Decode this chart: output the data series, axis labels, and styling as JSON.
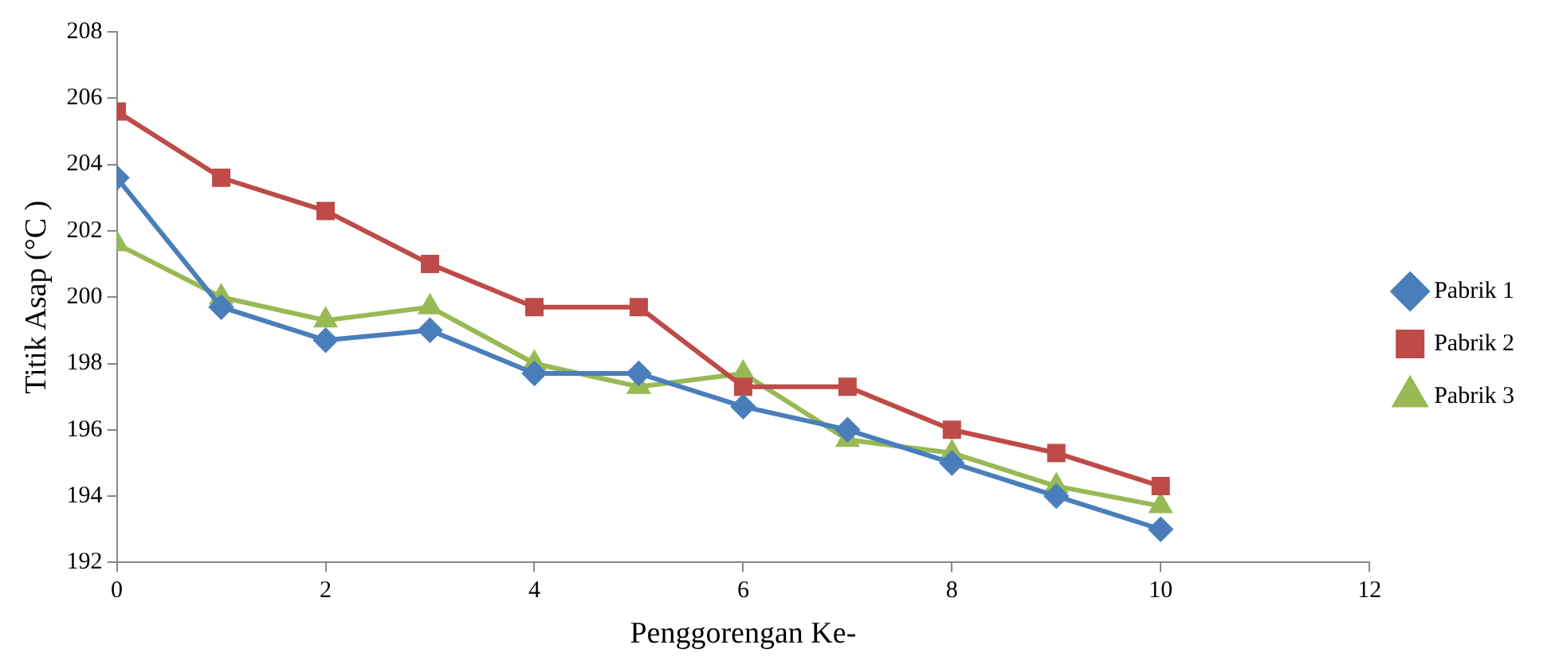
{
  "chart_data": {
    "type": "line",
    "xlabel": "Penggorengan Ke-",
    "ylabel": "Titik Asap (°C )",
    "x": [
      0,
      1,
      2,
      3,
      4,
      5,
      6,
      7,
      8,
      9,
      10
    ],
    "xlim": [
      0,
      12
    ],
    "xticks": [
      0,
      2,
      4,
      6,
      8,
      10,
      12
    ],
    "ylim": [
      192,
      208
    ],
    "yticks": [
      192,
      194,
      196,
      198,
      200,
      202,
      204,
      206,
      208
    ],
    "grid": false,
    "legend": "right",
    "line_style": "solid",
    "series": [
      {
        "name": "Pabrik 1",
        "color": "#4a7ebb",
        "marker": "diamond",
        "values": [
          203.6,
          199.7,
          198.7,
          199.0,
          197.7,
          197.7,
          196.7,
          196.0,
          195.0,
          194.0,
          193.0
        ]
      },
      {
        "name": "Pabrik 2",
        "color": "#be4b48",
        "marker": "square",
        "values": [
          205.6,
          203.6,
          202.6,
          201.0,
          199.7,
          199.7,
          197.3,
          197.3,
          196.0,
          195.3,
          194.3
        ]
      },
      {
        "name": "Pabrik 3",
        "color": "#98b954",
        "marker": "triangle",
        "values": [
          201.6,
          200.0,
          199.3,
          199.7,
          198.0,
          197.3,
          197.7,
          195.7,
          195.3,
          194.3,
          193.7
        ]
      }
    ]
  }
}
